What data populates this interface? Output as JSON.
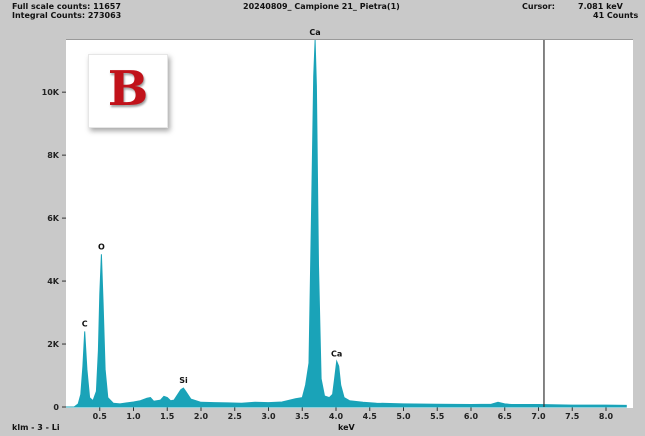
{
  "header": {
    "full_scale": "Full scale counts: 11657",
    "integral": "Integral Counts: 273063",
    "title": "20240809_ Campione 21_ Pietra(1)",
    "cursor_label": "Cursor:",
    "cursor_value": "7.081 keV",
    "cursor_counts": "41 Counts"
  },
  "badge": {
    "letter": "B"
  },
  "footer": {
    "left": "klm - 3 - Li",
    "xlabel": "keV"
  },
  "colors": {
    "spectrum": "#1aa3b8",
    "cursor": "#333333",
    "badge_letter": "#c1121a"
  },
  "chart_data": {
    "type": "area",
    "xlabel": "keV",
    "ylabel": "",
    "xlim": [
      0.0,
      8.4
    ],
    "ylim": [
      0,
      11657
    ],
    "grid": false,
    "x_ticks": [
      0.5,
      1.0,
      1.5,
      2.0,
      2.5,
      3.0,
      3.5,
      4.0,
      4.5,
      5.0,
      5.5,
      6.0,
      6.5,
      7.0,
      7.5,
      8.0
    ],
    "x_tick_labels": [
      "0.5",
      "1.0",
      "1.5",
      "2.0",
      "2.5",
      "3.0",
      "3.5",
      "4.0",
      "4.5",
      "5.0",
      "5.5",
      "6.0",
      "6.5",
      "7.0",
      "7.5",
      "8.0"
    ],
    "y_ticks": [
      0,
      2000,
      4000,
      6000,
      8000,
      10000
    ],
    "y_tick_labels": [
      "0",
      "2K",
      "4K",
      "6K",
      "8K",
      "10K"
    ],
    "cursor_x": 7.081,
    "peaks": [
      {
        "label": "C",
        "x": 0.277,
        "y": 2400
      },
      {
        "label": "O",
        "x": 0.525,
        "y": 4850
      },
      {
        "label": "Si",
        "x": 1.74,
        "y": 600
      },
      {
        "label": "Ca",
        "x": 3.69,
        "y": 11657
      },
      {
        "label": "Ca",
        "x": 4.01,
        "y": 1450
      }
    ],
    "spectrum": {
      "x": [
        0.0,
        0.12,
        0.18,
        0.22,
        0.25,
        0.277,
        0.31,
        0.35,
        0.4,
        0.45,
        0.48,
        0.5,
        0.525,
        0.55,
        0.58,
        0.62,
        0.7,
        0.8,
        0.9,
        1.0,
        1.1,
        1.2,
        1.25,
        1.3,
        1.4,
        1.45,
        1.5,
        1.55,
        1.6,
        1.7,
        1.74,
        1.78,
        1.85,
        2.0,
        2.2,
        2.4,
        2.6,
        2.8,
        3.0,
        3.2,
        3.3,
        3.4,
        3.5,
        3.55,
        3.6,
        3.64,
        3.67,
        3.69,
        3.71,
        3.74,
        3.78,
        3.83,
        3.9,
        3.95,
        3.98,
        4.01,
        4.04,
        4.07,
        4.12,
        4.2,
        4.4,
        4.6,
        4.8,
        5.0,
        5.5,
        6.0,
        6.3,
        6.4,
        6.5,
        6.6,
        7.0,
        7.5,
        8.0,
        8.3
      ],
      "y": [
        0,
        0,
        100,
        400,
        1300,
        2400,
        1200,
        300,
        200,
        500,
        1800,
        3600,
        4850,
        3300,
        1200,
        300,
        120,
        100,
        130,
        160,
        200,
        280,
        300,
        180,
        220,
        340,
        300,
        200,
        220,
        550,
        600,
        480,
        250,
        150,
        140,
        130,
        120,
        150,
        140,
        160,
        210,
        260,
        300,
        700,
        1400,
        6500,
        10500,
        11657,
        10200,
        4500,
        900,
        350,
        300,
        400,
        900,
        1450,
        1300,
        700,
        300,
        200,
        150,
        120,
        110,
        100,
        90,
        80,
        90,
        150,
        100,
        80,
        80,
        60,
        60,
        50
      ]
    }
  }
}
